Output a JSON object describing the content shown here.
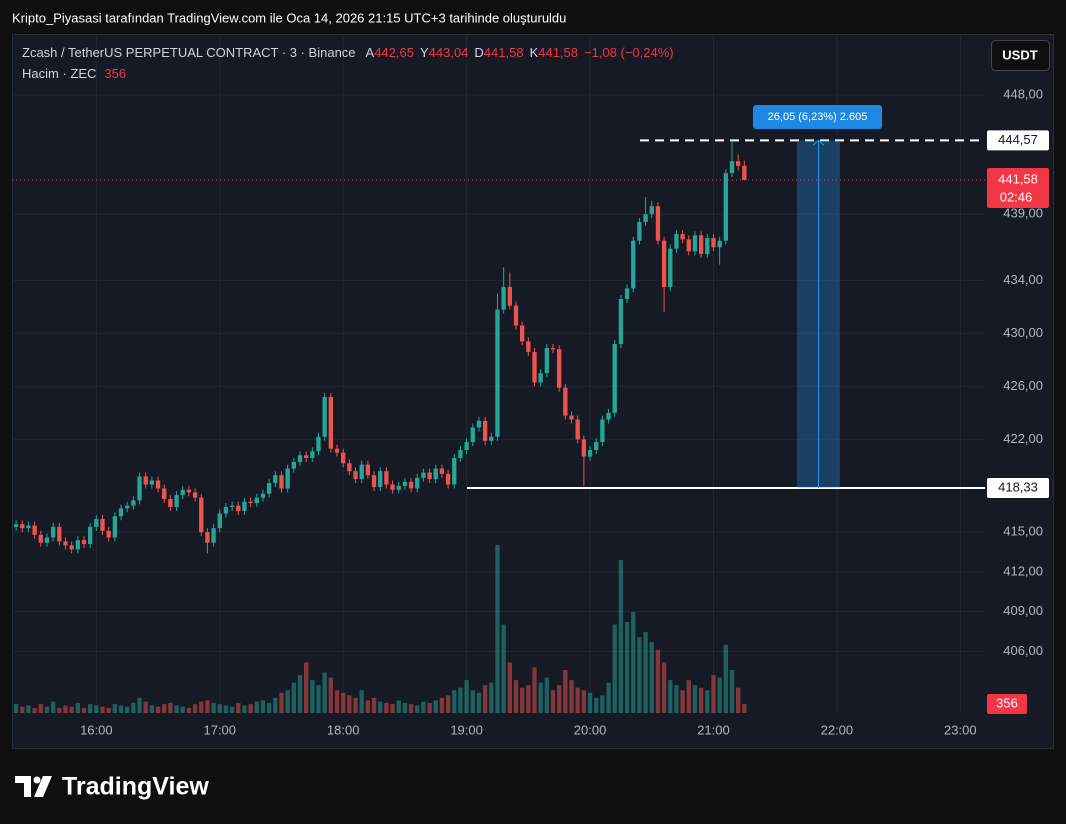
{
  "header": {
    "caption": "Kripto_Piyasasi tarafından TradingView.com ile Oca 14, 2026 21:15 UTC+3 tarihinde oluşturuldu",
    "symbol": "Zcash / TetherUS PERPETUAL CONTRACT · 3 · Binance",
    "ohlc_legend": [
      {
        "key": "A",
        "text": "442,65"
      },
      {
        "key": "Y",
        "text": "443,04"
      },
      {
        "key": "D",
        "text": "441,58"
      },
      {
        "key": "K",
        "text": "441,58"
      }
    ],
    "change": "−1,08 (−0,24%)",
    "volume_title": "Hacim · ZEC",
    "currency": "USDT"
  },
  "footer": {
    "brand": "TradingView"
  },
  "chart_data": {
    "type": "candlestick",
    "x": [
      "15:21",
      "15:24",
      "15:27",
      "15:30",
      "15:33",
      "15:36",
      "15:39",
      "15:42",
      "15:45",
      "15:48",
      "15:51",
      "15:54",
      "15:57",
      "16:00",
      "16:03",
      "16:06",
      "16:09",
      "16:12",
      "16:15",
      "16:18",
      "16:21",
      "16:24",
      "16:27",
      "16:30",
      "16:33",
      "16:36",
      "16:39",
      "16:42",
      "16:45",
      "16:48",
      "16:51",
      "16:54",
      "16:57",
      "17:00",
      "17:03",
      "17:06",
      "17:09",
      "17:12",
      "17:15",
      "17:18",
      "17:21",
      "17:24",
      "17:27",
      "17:30",
      "17:33",
      "17:36",
      "17:39",
      "17:42",
      "17:45",
      "17:48",
      "17:51",
      "17:54",
      "17:57",
      "18:00",
      "18:03",
      "18:06",
      "18:09",
      "18:12",
      "18:15",
      "18:18",
      "18:21",
      "18:24",
      "18:27",
      "18:30",
      "18:33",
      "18:36",
      "18:39",
      "18:42",
      "18:45",
      "18:48",
      "18:51",
      "18:54",
      "18:57",
      "19:00",
      "19:03",
      "19:06",
      "19:09",
      "19:12",
      "19:15",
      "19:18",
      "19:21",
      "19:24",
      "19:27",
      "19:30",
      "19:33",
      "19:36",
      "19:39",
      "19:42",
      "19:45",
      "19:48",
      "19:51",
      "19:54",
      "19:57",
      "20:00",
      "20:03",
      "20:06",
      "20:09",
      "20:12",
      "20:15",
      "20:18",
      "20:21",
      "20:24",
      "20:27",
      "20:30",
      "20:33",
      "20:36",
      "20:39",
      "20:42",
      "20:45",
      "20:48",
      "20:51",
      "20:54",
      "20:57",
      "21:00",
      "21:03",
      "21:06",
      "21:09",
      "21:12",
      "21:15"
    ],
    "open": [
      415.4,
      415.6,
      415.3,
      415.5,
      414.8,
      414.2,
      414.6,
      415.4,
      414.3,
      414.0,
      413.7,
      414.4,
      414.1,
      415.4,
      416.0,
      415.1,
      414.6,
      416.2,
      416.8,
      417.0,
      417.4,
      419.2,
      418.6,
      418.9,
      418.3,
      417.5,
      416.9,
      417.8,
      418.2,
      418.0,
      417.6,
      415.0,
      414.2,
      415.3,
      416.4,
      416.9,
      417.0,
      416.6,
      417.3,
      417.2,
      417.6,
      417.9,
      418.7,
      419.3,
      418.3,
      419.8,
      420.3,
      420.8,
      420.6,
      421.1,
      422.2,
      425.2,
      421.3,
      421.0,
      420.2,
      419.6,
      419.0,
      420.1,
      419.3,
      418.4,
      419.6,
      418.6,
      418.2,
      418.5,
      418.8,
      418.3,
      419.1,
      419.5,
      419.0,
      419.8,
      419.4,
      418.6,
      420.6,
      421.2,
      421.8,
      422.9,
      423.4,
      421.9,
      422.2,
      431.8,
      433.5,
      432.1,
      430.6,
      429.4,
      428.6,
      426.3,
      427.0,
      428.9,
      428.8,
      425.9,
      423.8,
      423.5,
      422.0,
      420.7,
      421.2,
      421.8,
      423.5,
      424.0,
      429.2,
      432.6,
      433.4,
      437.0,
      438.4,
      439.0,
      439.6,
      437.0,
      433.5,
      436.4,
      437.5,
      437.1,
      436.2,
      437.4,
      436.0,
      437.2,
      436.5,
      437.0,
      442.1,
      443.0,
      442.65
    ],
    "high": [
      415.9,
      415.9,
      415.8,
      415.8,
      415.1,
      414.9,
      415.7,
      415.7,
      414.6,
      414.3,
      414.7,
      414.7,
      415.7,
      416.3,
      416.3,
      415.4,
      416.5,
      417.1,
      417.3,
      417.7,
      419.5,
      419.5,
      419.2,
      419.2,
      418.6,
      417.8,
      418.1,
      418.5,
      418.5,
      418.3,
      417.9,
      415.3,
      415.6,
      416.7,
      417.2,
      417.3,
      417.3,
      417.6,
      417.6,
      417.9,
      418.2,
      419.0,
      419.6,
      419.6,
      420.1,
      420.6,
      421.1,
      421.1,
      421.4,
      422.5,
      425.5,
      425.5,
      421.6,
      421.3,
      420.5,
      419.9,
      420.4,
      420.4,
      419.6,
      419.9,
      419.9,
      418.9,
      418.8,
      419.1,
      419.1,
      419.4,
      419.8,
      419.8,
      420.1,
      420.1,
      419.7,
      420.9,
      421.5,
      422.1,
      423.2,
      423.7,
      423.7,
      422.5,
      433.0,
      435.0,
      434.6,
      432.4,
      430.9,
      429.7,
      428.9,
      427.3,
      429.2,
      429.2,
      429.1,
      426.2,
      424.1,
      423.8,
      422.3,
      421.5,
      422.1,
      423.8,
      424.3,
      429.5,
      432.9,
      433.7,
      437.3,
      438.7,
      440.3,
      440.0,
      439.9,
      437.3,
      436.7,
      437.8,
      437.8,
      437.4,
      437.7,
      437.7,
      437.5,
      437.5,
      437.3,
      442.4,
      444.57,
      443.5,
      443.04
    ],
    "low": [
      415.1,
      415.0,
      415.0,
      414.5,
      413.9,
      413.9,
      414.3,
      414.0,
      413.7,
      413.4,
      413.4,
      413.8,
      413.8,
      415.1,
      414.8,
      414.3,
      414.3,
      415.9,
      416.5,
      416.7,
      417.1,
      418.3,
      418.3,
      418.0,
      417.2,
      416.6,
      416.6,
      417.5,
      417.7,
      417.3,
      414.7,
      413.4,
      413.9,
      415.0,
      416.1,
      416.6,
      416.3,
      416.3,
      416.9,
      416.9,
      417.3,
      417.6,
      418.4,
      418.0,
      418.0,
      419.5,
      420.0,
      420.3,
      420.3,
      420.8,
      421.9,
      421.0,
      420.7,
      419.9,
      419.3,
      418.7,
      418.7,
      419.0,
      418.1,
      418.1,
      418.3,
      417.9,
      417.9,
      418.2,
      418.0,
      418.0,
      418.8,
      418.7,
      418.7,
      419.1,
      418.3,
      418.3,
      420.3,
      420.9,
      421.5,
      422.6,
      421.6,
      421.6,
      421.9,
      431.5,
      431.8,
      430.3,
      429.1,
      428.3,
      426.0,
      426.0,
      426.7,
      428.5,
      425.6,
      423.5,
      423.2,
      421.7,
      418.5,
      420.4,
      420.9,
      421.5,
      423.2,
      423.7,
      428.9,
      432.3,
      433.1,
      436.7,
      438.1,
      438.7,
      436.7,
      431.6,
      433.2,
      436.1,
      436.8,
      435.9,
      435.9,
      435.7,
      435.7,
      436.2,
      435.2,
      436.7,
      441.8,
      442.3,
      441.58
    ],
    "close": [
      415.6,
      415.3,
      415.5,
      414.8,
      414.2,
      414.6,
      415.4,
      414.3,
      414.0,
      413.7,
      414.4,
      414.1,
      415.4,
      416.0,
      415.1,
      414.6,
      416.2,
      416.8,
      417.0,
      417.4,
      419.2,
      418.6,
      418.9,
      418.3,
      417.5,
      416.9,
      417.8,
      418.2,
      418.0,
      417.6,
      415.0,
      414.2,
      415.3,
      416.4,
      416.9,
      417.0,
      416.6,
      417.3,
      417.2,
      417.6,
      417.9,
      418.7,
      419.3,
      418.3,
      419.8,
      420.3,
      420.8,
      420.6,
      421.1,
      422.2,
      425.2,
      421.3,
      421.0,
      420.2,
      419.6,
      419.0,
      420.1,
      419.3,
      418.4,
      419.6,
      418.6,
      418.2,
      418.5,
      418.8,
      418.3,
      419.1,
      419.5,
      419.0,
      419.8,
      419.4,
      418.6,
      420.6,
      421.2,
      421.8,
      422.9,
      423.4,
      421.9,
      422.2,
      431.8,
      433.5,
      432.1,
      430.6,
      429.4,
      428.6,
      426.3,
      427.0,
      428.9,
      428.8,
      425.9,
      423.8,
      423.5,
      422.0,
      420.7,
      421.2,
      421.8,
      423.5,
      424.0,
      429.2,
      432.6,
      433.4,
      437.0,
      438.4,
      439.0,
      439.6,
      437.0,
      433.5,
      436.4,
      437.5,
      437.1,
      436.2,
      437.4,
      436.0,
      437.2,
      436.5,
      437.0,
      442.1,
      443.0,
      442.65,
      441.58
    ],
    "volume": {
      "ylim": [
        0,
        7000
      ],
      "values": [
        350,
        250,
        300,
        200,
        350,
        250,
        450,
        200,
        300,
        250,
        400,
        200,
        350,
        300,
        250,
        200,
        350,
        300,
        250,
        400,
        600,
        450,
        300,
        250,
        350,
        400,
        300,
        250,
        200,
        350,
        450,
        500,
        400,
        350,
        300,
        250,
        400,
        300,
        350,
        450,
        500,
        400,
        600,
        800,
        900,
        1200,
        1500,
        2000,
        1300,
        1100,
        1600,
        1400,
        900,
        800,
        700,
        600,
        900,
        500,
        600,
        450,
        400,
        350,
        500,
        400,
        350,
        300,
        450,
        400,
        500,
        600,
        700,
        900,
        1000,
        1300,
        900,
        800,
        1100,
        1200,
        6650,
        3500,
        2000,
        1300,
        1000,
        1100,
        1800,
        1200,
        1400,
        900,
        1100,
        1700,
        1300,
        1000,
        900,
        800,
        600,
        700,
        1200,
        3500,
        6050,
        3600,
        4000,
        3000,
        3200,
        2800,
        2500,
        2000,
        1300,
        1100,
        900,
        1300,
        1100,
        1000,
        900,
        1500,
        1400,
        2700,
        1700,
        1000,
        356
      ]
    },
    "colors": {
      "up": "#26a69a",
      "down": "#ef5350",
      "volume_up": "rgba(38,166,154,0.5)",
      "volume_down": "rgba(239,83,80,0.5)"
    },
    "ylim": [
      401.35,
      452.6
    ],
    "yticks": [
      {
        "value": 448,
        "label": "448,00"
      },
      {
        "value": 439,
        "label": "439,00"
      },
      {
        "value": 434,
        "label": "434,00"
      },
      {
        "value": 430,
        "label": "430,00"
      },
      {
        "value": 426,
        "label": "426,00"
      },
      {
        "value": 422,
        "label": "422,00"
      },
      {
        "value": 415,
        "label": "415,00"
      },
      {
        "value": 412,
        "label": "412,00"
      },
      {
        "value": 409,
        "label": "409,00"
      },
      {
        "value": 406,
        "label": "406,00"
      }
    ],
    "xlim": [
      "15:19",
      "23:12"
    ],
    "xticks": [
      "16:00",
      "17:00",
      "18:00",
      "19:00",
      "20:00",
      "21:00",
      "22:00",
      "23:00"
    ],
    "grid": true,
    "price_lines": [
      {
        "value": 444.57,
        "label": "444,57",
        "style": "dashed"
      },
      {
        "value": 418.33,
        "label": "418,33",
        "style": "solid"
      }
    ],
    "measure_label": "26,05 (6,23%) 2.605",
    "last_price": {
      "value": 441.58,
      "label": "441,58",
      "countdown": "02:46"
    }
  }
}
